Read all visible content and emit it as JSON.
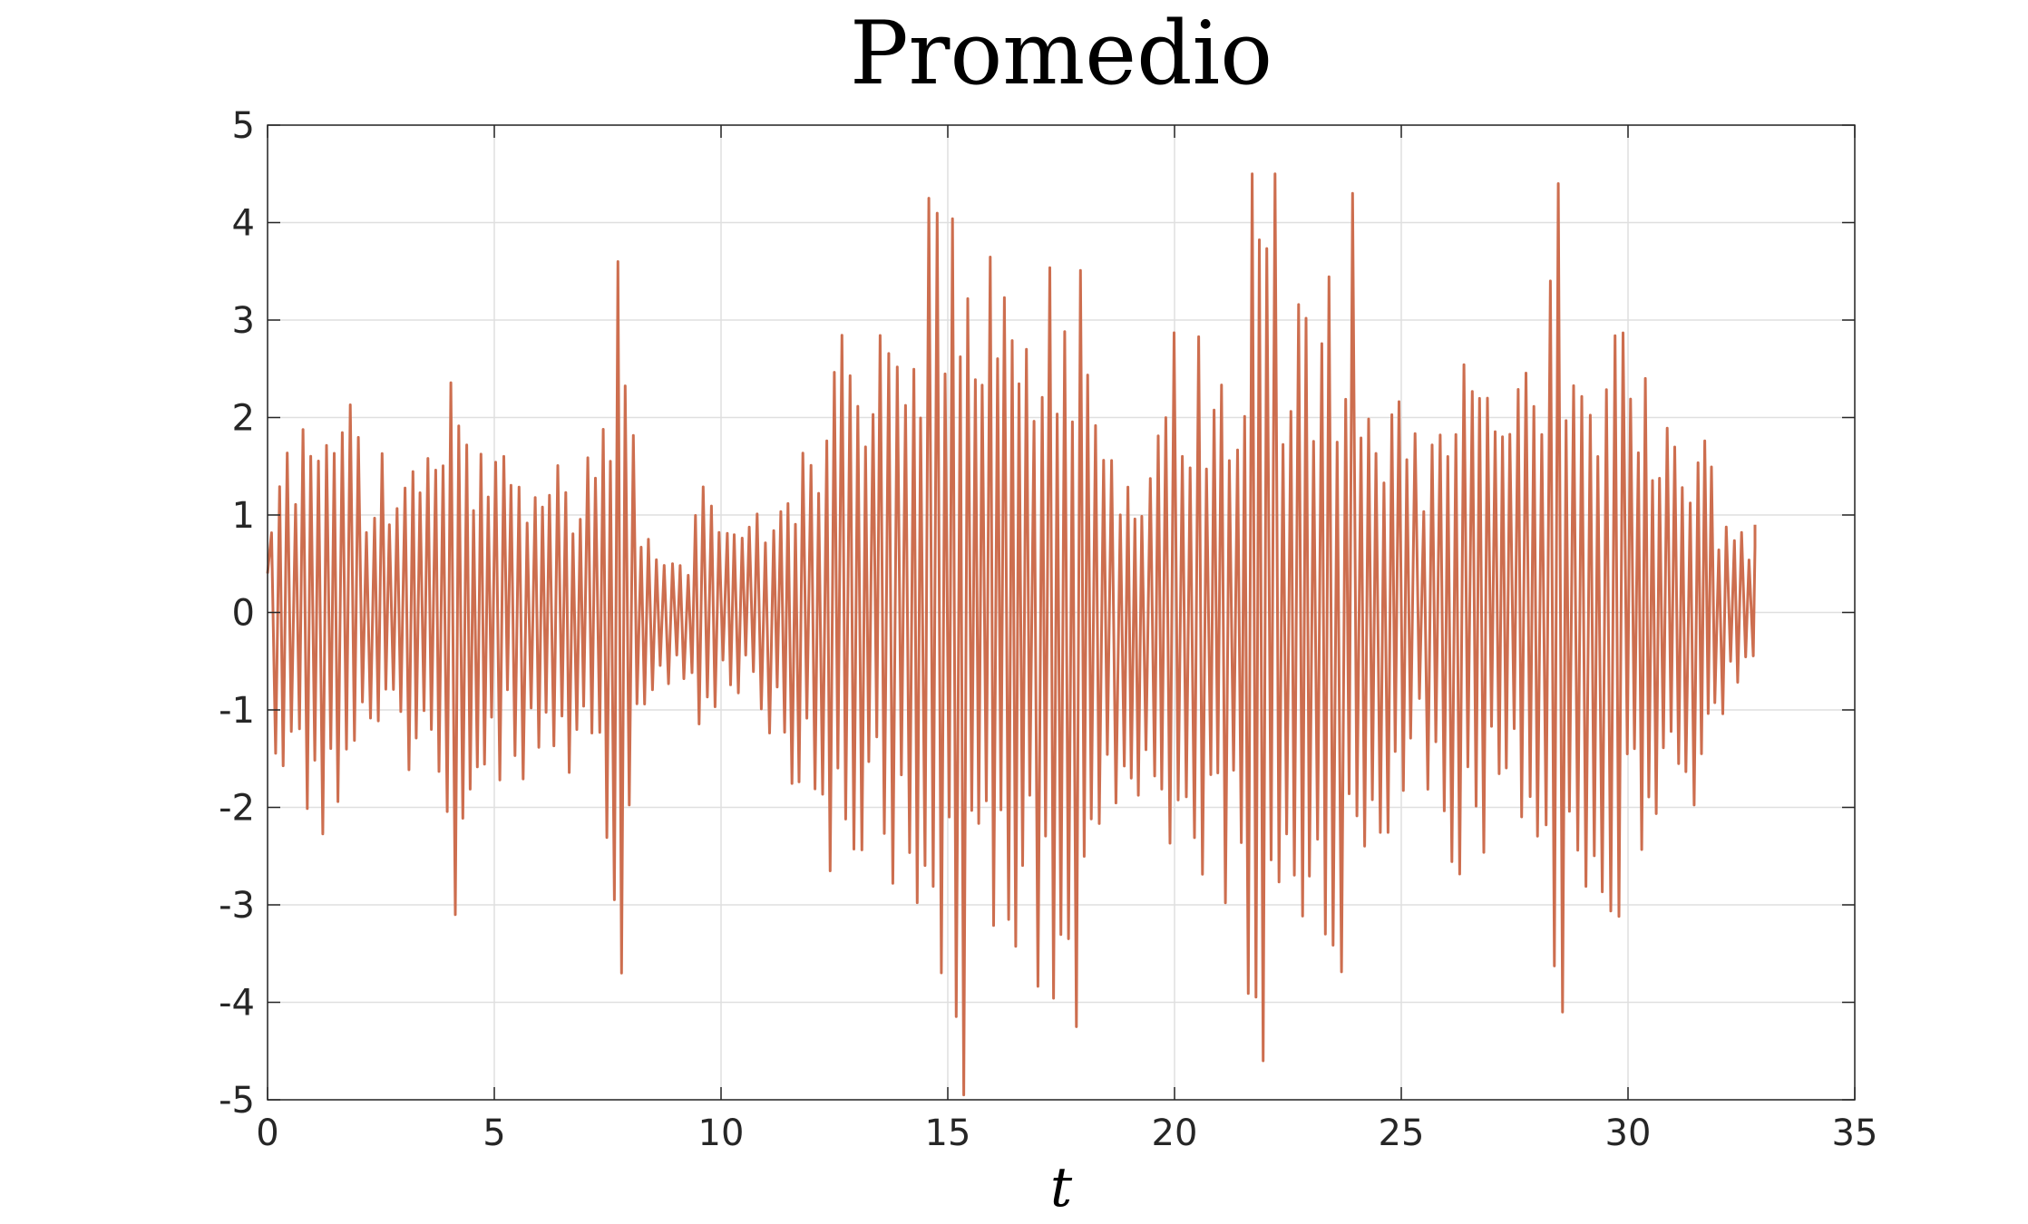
{
  "chart_data": {
    "type": "line",
    "title": "Promedio",
    "xlabel": "t",
    "ylabel": "",
    "xlim": [
      0,
      35
    ],
    "ylim": [
      -5,
      5
    ],
    "xticks": [
      0,
      5,
      10,
      15,
      20,
      25,
      30,
      35
    ],
    "yticks": [
      -5,
      -4,
      -3,
      -2,
      -1,
      0,
      1,
      2,
      3,
      4,
      5
    ],
    "grid": true,
    "series": [
      {
        "color": "#cd6e4f",
        "x_range": [
          0,
          32.8
        ],
        "oscillation_period": 0.17,
        "envelope": [
          [
            0,
            1.2
          ],
          [
            0.5,
            1.9
          ],
          [
            1.0,
            2.3
          ],
          [
            1.6,
            2.7
          ],
          [
            2.2,
            1.6
          ],
          [
            3.0,
            1.8
          ],
          [
            3.6,
            1.6
          ],
          [
            4.1,
            2.8
          ],
          [
            4.5,
            1.8
          ],
          [
            5.0,
            1.7
          ],
          [
            5.6,
            1.8
          ],
          [
            6.2,
            1.6
          ],
          [
            6.8,
            1.8
          ],
          [
            7.4,
            2.0
          ],
          [
            7.8,
            3.6
          ],
          [
            8.2,
            1.5
          ],
          [
            8.6,
            0.8
          ],
          [
            9.2,
            0.7
          ],
          [
            9.6,
            1.3
          ],
          [
            10.0,
            1.0
          ],
          [
            10.5,
            0.8
          ],
          [
            11.0,
            1.3
          ],
          [
            11.5,
            1.8
          ],
          [
            12.0,
            2.2
          ],
          [
            12.7,
            3.0
          ],
          [
            13.4,
            2.8
          ],
          [
            14.0,
            3.2
          ],
          [
            14.6,
            4.0
          ],
          [
            15.2,
            4.5
          ],
          [
            15.8,
            3.8
          ],
          [
            16.4,
            3.9
          ],
          [
            17.2,
            4.0
          ],
          [
            17.8,
            4.2
          ],
          [
            18.4,
            2.2
          ],
          [
            19.0,
            1.8
          ],
          [
            19.6,
            2.6
          ],
          [
            20.2,
            3.2
          ],
          [
            20.8,
            3.1
          ],
          [
            21.4,
            3.6
          ],
          [
            21.9,
            4.4
          ],
          [
            22.4,
            3.7
          ],
          [
            23.0,
            3.3
          ],
          [
            23.6,
            3.8
          ],
          [
            24.2,
            3.0
          ],
          [
            24.8,
            2.4
          ],
          [
            25.2,
            1.8
          ],
          [
            25.8,
            2.2
          ],
          [
            26.4,
            3.0
          ],
          [
            27.0,
            2.4
          ],
          [
            27.6,
            2.5
          ],
          [
            28.4,
            4.2
          ],
          [
            28.8,
            3.8
          ],
          [
            29.4,
            3.4
          ],
          [
            29.9,
            3.3
          ],
          [
            30.4,
            2.6
          ],
          [
            31.0,
            2.2
          ],
          [
            31.6,
            2.0
          ],
          [
            32.2,
            1.0
          ],
          [
            32.8,
            0.8
          ]
        ],
        "notable_extrema": [
          {
            "x": 7.8,
            "y": 3.6
          },
          {
            "x": 7.75,
            "y": -3.7
          },
          {
            "x": 4.2,
            "y": -3.1
          },
          {
            "x": 15.3,
            "y": -4.95
          },
          {
            "x": 14.65,
            "y": 4.25
          },
          {
            "x": 17.85,
            "y": -4.25
          },
          {
            "x": 21.7,
            "y": 4.5
          },
          {
            "x": 21.95,
            "y": -4.6
          },
          {
            "x": 22.2,
            "y": 4.5
          },
          {
            "x": 28.4,
            "y": 4.4
          },
          {
            "x": 28.5,
            "y": -4.1
          },
          {
            "x": 23.9,
            "y": 4.3
          }
        ]
      }
    ]
  }
}
